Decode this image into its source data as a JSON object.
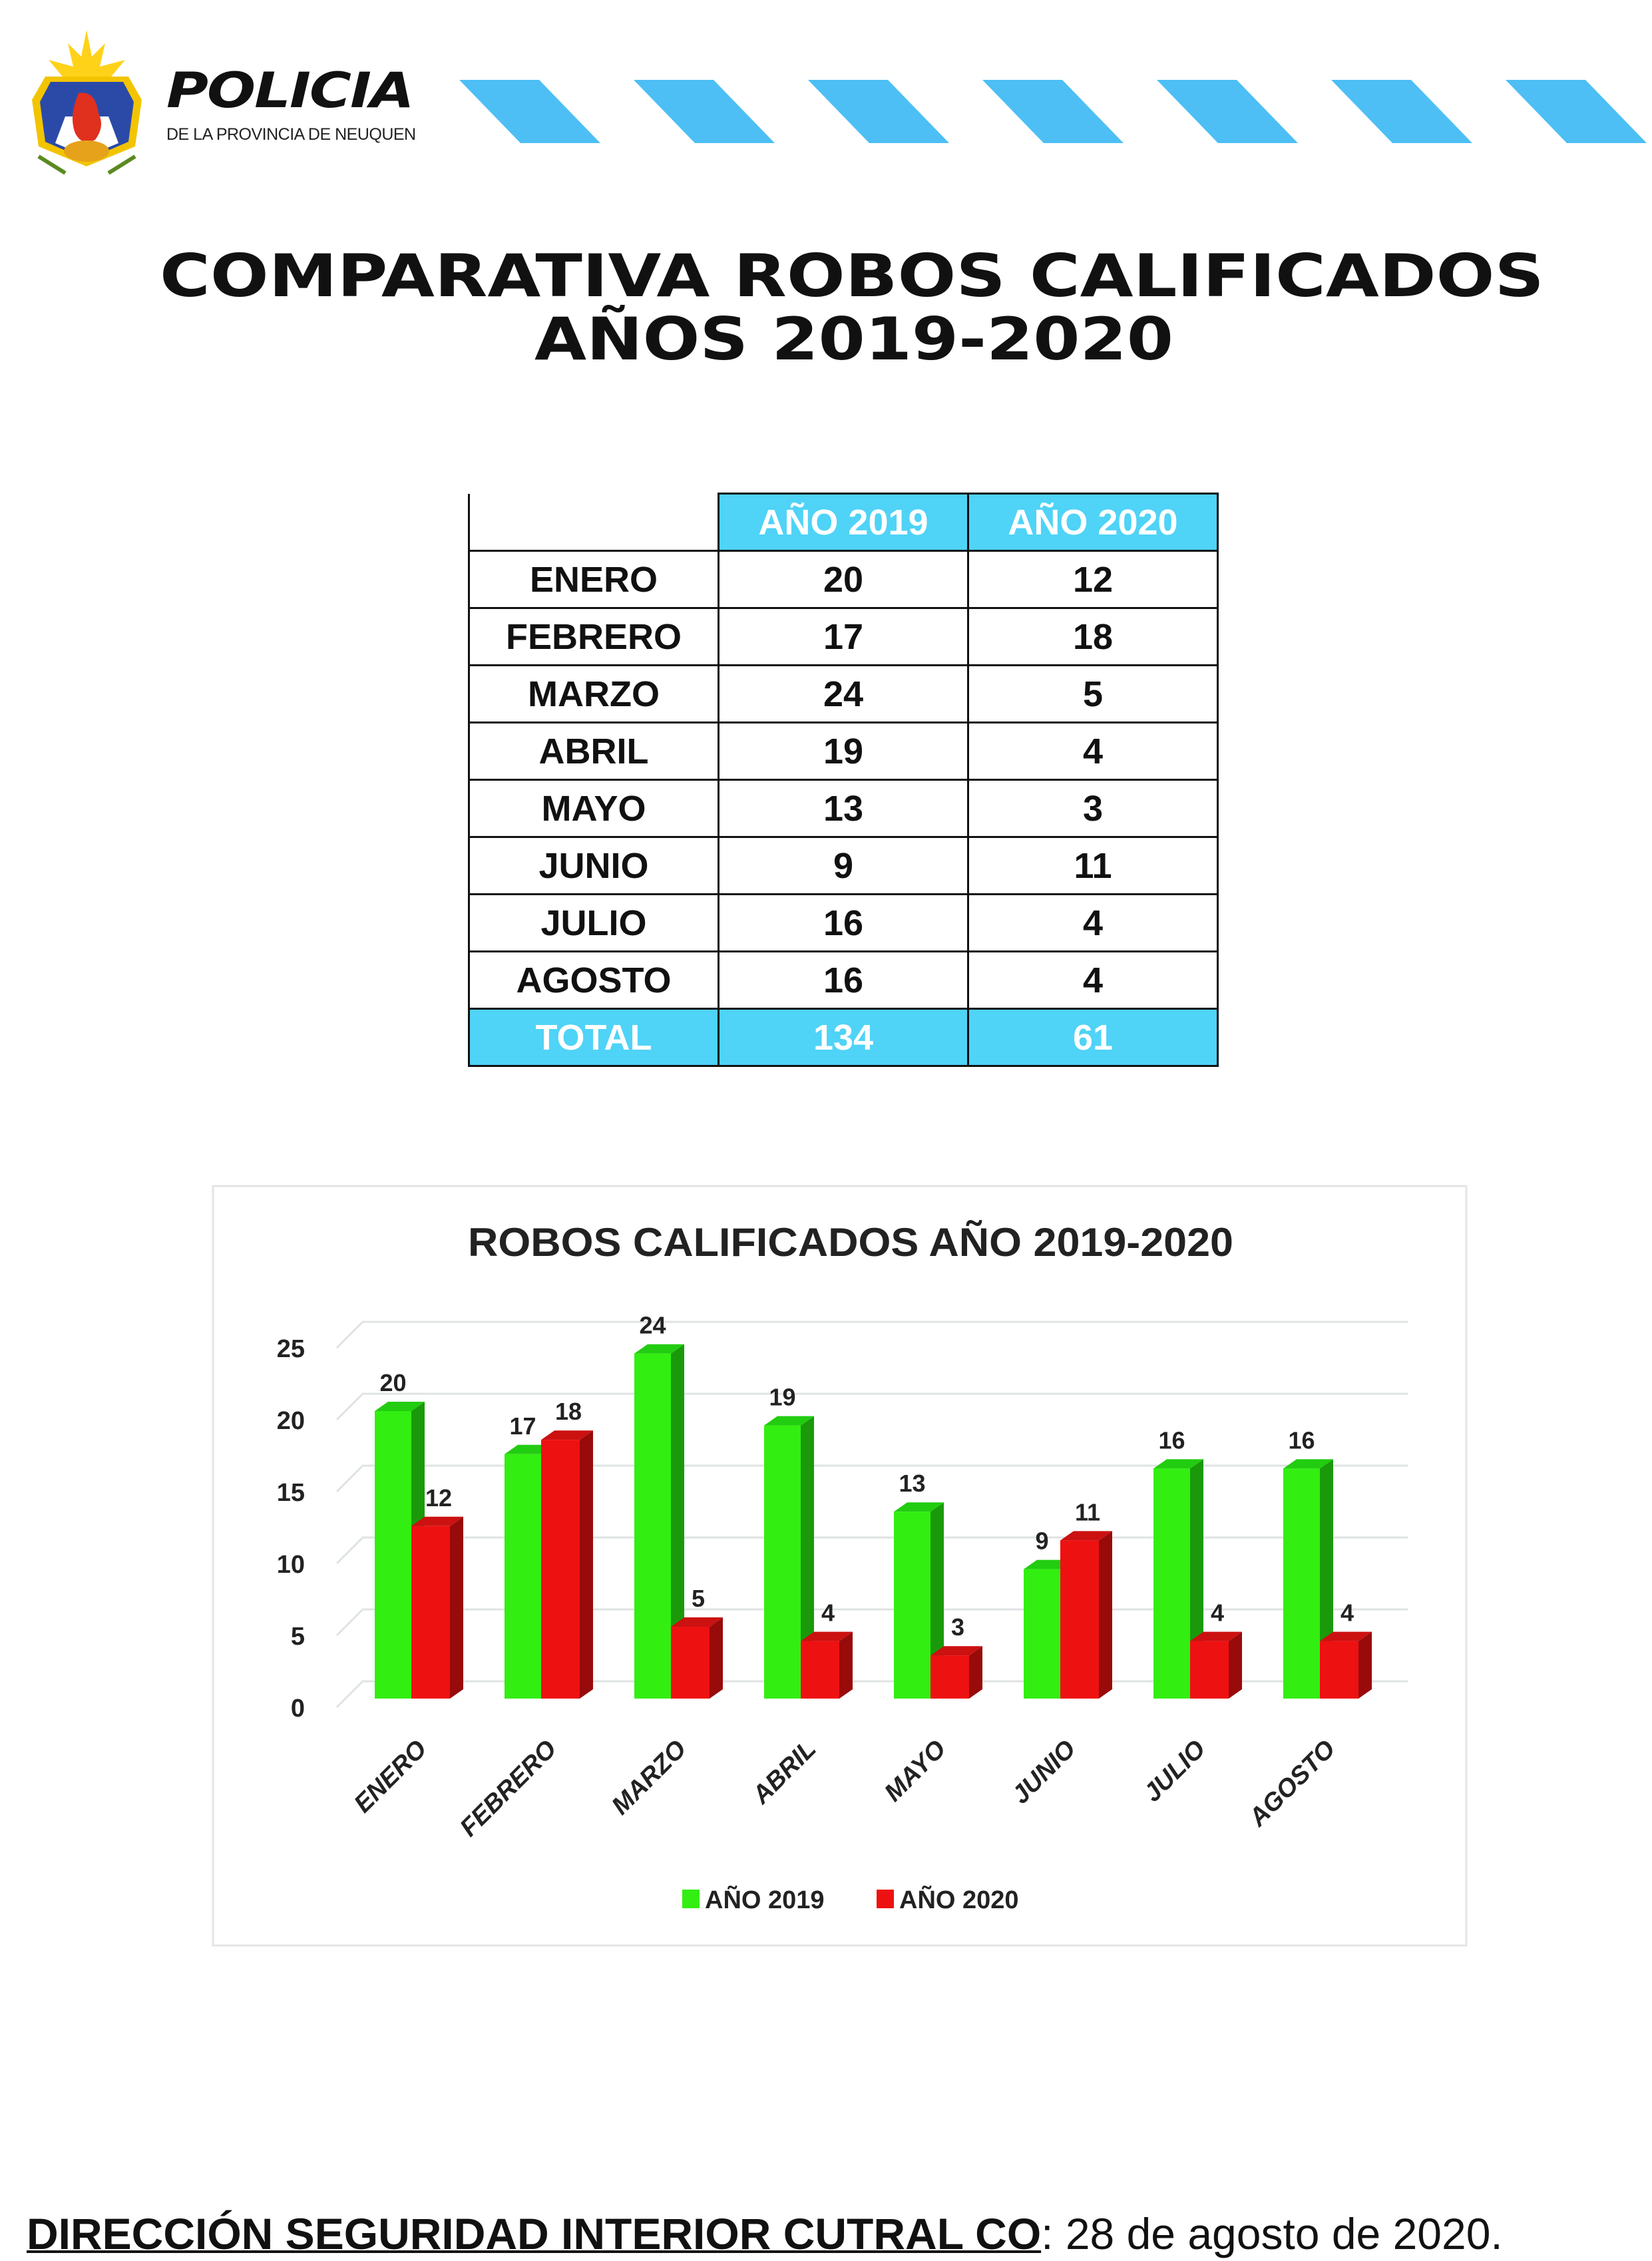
{
  "header": {
    "brand_name": "POLICIA",
    "brand_subtitle": "DE LA PROVINCIA DE NEUQUEN",
    "logo_text": "POLICIA"
  },
  "title": {
    "line1": "COMPARATIVA ROBOS CALIFICADOS",
    "line2": "AÑOS 2019-2020"
  },
  "table": {
    "columns": [
      "",
      "AÑO 2019",
      "AÑO 2020"
    ],
    "rows": [
      [
        "ENERO",
        "20",
        "12"
      ],
      [
        "FEBRERO",
        "17",
        "18"
      ],
      [
        "MARZO",
        "24",
        "5"
      ],
      [
        "ABRIL",
        "19",
        "4"
      ],
      [
        "MAYO",
        "13",
        "3"
      ],
      [
        "JUNIO",
        "9",
        "11"
      ],
      [
        "JULIO",
        "16",
        "4"
      ],
      [
        "AGOSTO",
        "16",
        "4"
      ]
    ],
    "total": [
      "TOTAL",
      "134",
      "61"
    ]
  },
  "chart_data": {
    "type": "bar",
    "title": "ROBOS CALIFICADOS AÑO 2019-2020",
    "categories": [
      "ENERO",
      "FEBRERO",
      "MARZO",
      "ABRIL",
      "MAYO",
      "JUNIO",
      "JULIO",
      "AGOSTO"
    ],
    "series": [
      {
        "name": "AÑO 2019",
        "color": "#33ee11",
        "values": [
          20,
          17,
          24,
          19,
          13,
          9,
          16,
          16
        ]
      },
      {
        "name": "AÑO 2020",
        "color": "#ee1111",
        "values": [
          12,
          18,
          5,
          4,
          3,
          11,
          4,
          4
        ]
      }
    ],
    "yticks": [
      0,
      5,
      10,
      15,
      20,
      25
    ],
    "ylim": [
      0,
      25
    ],
    "grid": true,
    "legend": "bottom",
    "xlabel": "",
    "ylabel": ""
  },
  "footer": {
    "org": "DIRECCIÓN SEGURIDAD INTERIOR CUTRAL CO",
    "date": ": 28 de agosto de 2020."
  },
  "colors": {
    "accent": "#4fd3f7",
    "stripe": "#4dbff5"
  }
}
